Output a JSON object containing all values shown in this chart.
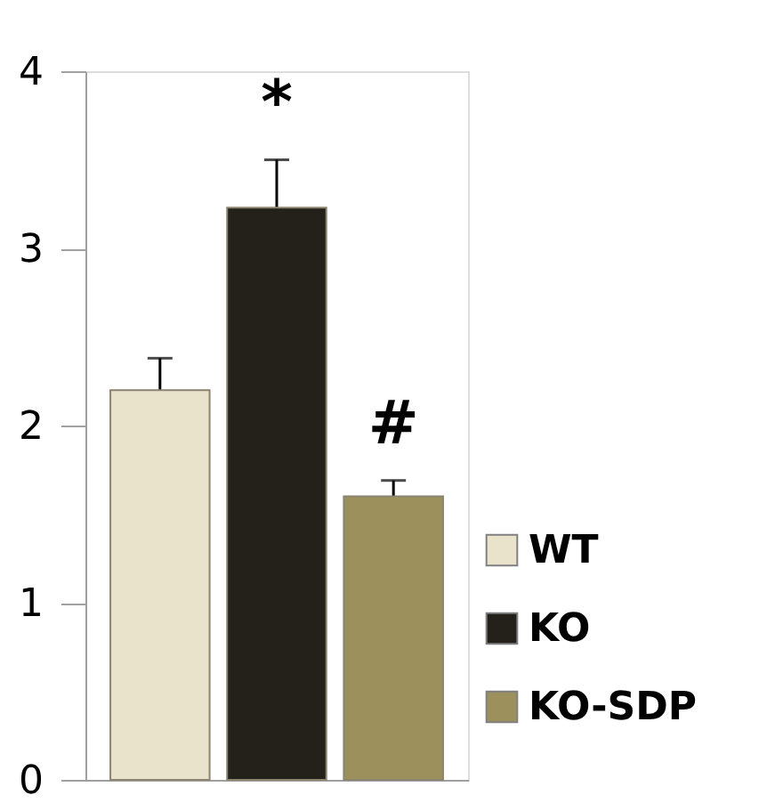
{
  "chart_data": {
    "type": "bar",
    "categories": [
      null
    ],
    "series": [
      {
        "name": "WT",
        "color": "#e9e3cc",
        "values": [
          2.2
        ],
        "errors": [
          0.18
        ]
      },
      {
        "name": "KO",
        "color": "#23211a",
        "values": [
          3.23
        ],
        "errors": [
          0.27
        ]
      },
      {
        "name": "KO-SDP",
        "color": "#9c915c",
        "values": [
          1.6
        ],
        "errors": [
          0.09
        ]
      }
    ],
    "ylim": [
      0,
      4
    ],
    "yticks": [
      0,
      1,
      2,
      3,
      4
    ],
    "grid": false,
    "legend": "bottom right",
    "annotations": [
      "*",
      "#"
    ]
  }
}
